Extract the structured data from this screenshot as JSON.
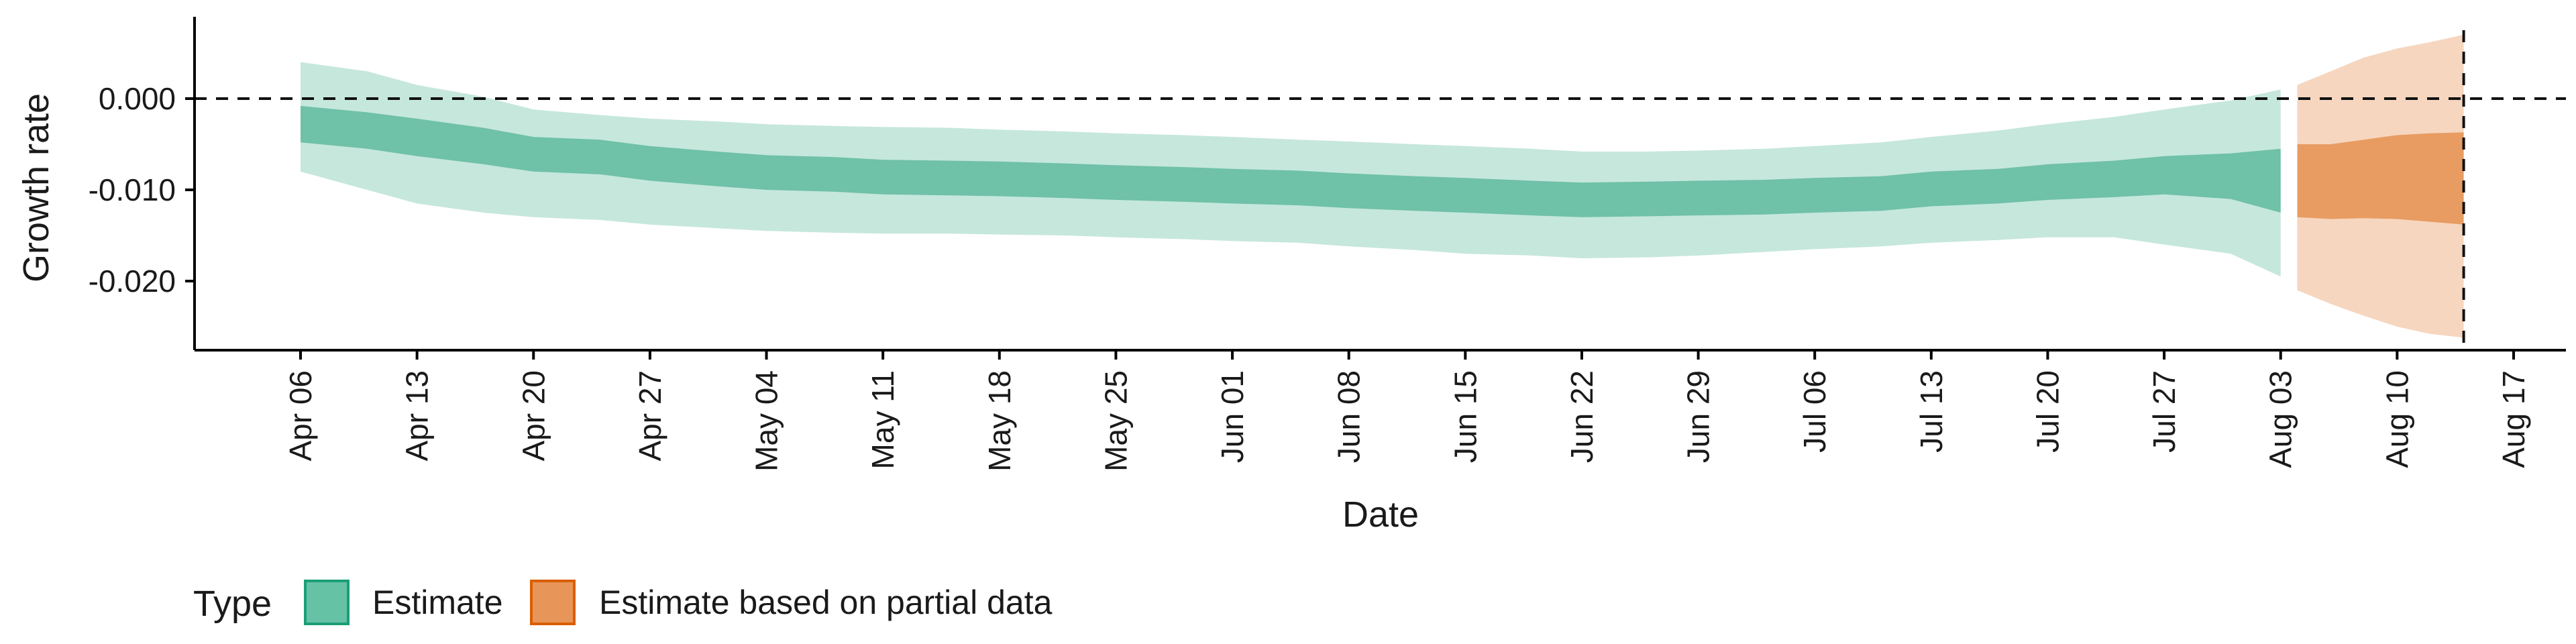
{
  "chart_data": {
    "type": "area",
    "xlabel": "Date",
    "ylabel": "Growth rate",
    "x_ticks": [
      "2020-04-06",
      "2020-04-13",
      "2020-04-20",
      "2020-04-27",
      "2020-05-04",
      "2020-05-11",
      "2020-05-18",
      "2020-05-25",
      "2020-06-01",
      "2020-06-08",
      "2020-06-15",
      "2020-06-22",
      "2020-06-29",
      "2020-07-06",
      "2020-07-13",
      "2020-07-20",
      "2020-07-27",
      "2020-08-03",
      "2020-08-10",
      "2020-08-17"
    ],
    "x_tick_labels": [
      "Apr 06",
      "Apr 13",
      "Apr 20",
      "Apr 27",
      "May 04",
      "May 11",
      "May 18",
      "May 25",
      "Jun 01",
      "Jun 08",
      "Jun 15",
      "Jun 22",
      "Jun 29",
      "Jul 06",
      "Jul 13",
      "Jul 20",
      "Jul 27",
      "Aug 03",
      "Aug 10",
      "Aug 17"
    ],
    "xlim": [
      "2019-12-30",
      "2020-08-21"
    ],
    "y_ticks": [
      0.0,
      -0.01,
      -0.02
    ],
    "y_tick_labels": [
      "0.000",
      "-0.010",
      "-0.020"
    ],
    "ylim": [
      -0.0275,
      0.0085
    ],
    "reference_lines": {
      "hline_y": 0.0,
      "vline_x": "2020-08-14"
    },
    "legend": {
      "title": "Type",
      "placement": "bottom-left",
      "entries": [
        {
          "label": "Estimate",
          "color": "#66c2a5",
          "border": "#1b9e77"
        },
        {
          "label": "Estimate based on partial data",
          "color": "#e8955a",
          "border": "#d95f02"
        }
      ]
    },
    "series": [
      {
        "name": "Estimate",
        "color_inner": "#6fc1a8",
        "color_outer": "#c6e7dc",
        "x": [
          "2020-04-06",
          "2020-04-10",
          "2020-04-13",
          "2020-04-17",
          "2020-04-20",
          "2020-04-24",
          "2020-04-27",
          "2020-05-01",
          "2020-05-04",
          "2020-05-08",
          "2020-05-11",
          "2020-05-15",
          "2020-05-18",
          "2020-05-22",
          "2020-05-25",
          "2020-05-29",
          "2020-06-01",
          "2020-06-05",
          "2020-06-08",
          "2020-06-12",
          "2020-06-15",
          "2020-06-19",
          "2020-06-22",
          "2020-06-26",
          "2020-06-29",
          "2020-07-03",
          "2020-07-06",
          "2020-07-10",
          "2020-07-13",
          "2020-07-17",
          "2020-07-20",
          "2020-07-24",
          "2020-07-27",
          "2020-07-31",
          "2020-08-03"
        ],
        "inner_upper": [
          -0.0008,
          -0.0015,
          -0.0022,
          -0.0032,
          -0.0042,
          -0.0045,
          -0.0052,
          -0.0058,
          -0.0062,
          -0.0064,
          -0.0067,
          -0.0068,
          -0.0069,
          -0.0071,
          -0.0073,
          -0.0075,
          -0.0077,
          -0.0079,
          -0.0082,
          -0.0085,
          -0.0087,
          -0.009,
          -0.0092,
          -0.0091,
          -0.009,
          -0.0089,
          -0.0087,
          -0.0085,
          -0.008,
          -0.0077,
          -0.0072,
          -0.0068,
          -0.0063,
          -0.006,
          -0.0055
        ],
        "inner_lower": [
          -0.0048,
          -0.0055,
          -0.0063,
          -0.0072,
          -0.008,
          -0.0083,
          -0.009,
          -0.0096,
          -0.01,
          -0.0102,
          -0.0105,
          -0.0106,
          -0.0107,
          -0.0109,
          -0.0111,
          -0.0113,
          -0.0115,
          -0.0117,
          -0.012,
          -0.0123,
          -0.0125,
          -0.0128,
          -0.013,
          -0.0129,
          -0.0128,
          -0.0127,
          -0.0125,
          -0.0123,
          -0.0118,
          -0.0115,
          -0.0111,
          -0.0108,
          -0.0105,
          -0.011,
          -0.0125
        ],
        "outer_upper": [
          0.004,
          0.003,
          0.0015,
          0.0002,
          -0.0012,
          -0.0018,
          -0.0022,
          -0.0025,
          -0.0028,
          -0.003,
          -0.0031,
          -0.0032,
          -0.0034,
          -0.0036,
          -0.0038,
          -0.004,
          -0.0042,
          -0.0045,
          -0.0047,
          -0.005,
          -0.0052,
          -0.0055,
          -0.0058,
          -0.0058,
          -0.0057,
          -0.0055,
          -0.0052,
          -0.0048,
          -0.0042,
          -0.0035,
          -0.0028,
          -0.002,
          -0.0012,
          -0.0002,
          0.001
        ],
        "outer_lower": [
          -0.008,
          -0.01,
          -0.0115,
          -0.0125,
          -0.013,
          -0.0133,
          -0.0138,
          -0.0142,
          -0.0145,
          -0.0147,
          -0.0148,
          -0.0148,
          -0.0149,
          -0.015,
          -0.0152,
          -0.0154,
          -0.0156,
          -0.0158,
          -0.0162,
          -0.0166,
          -0.017,
          -0.0172,
          -0.0175,
          -0.0174,
          -0.0172,
          -0.0168,
          -0.0165,
          -0.0162,
          -0.0158,
          -0.0155,
          -0.0152,
          -0.0152,
          -0.016,
          -0.017,
          -0.0195
        ]
      },
      {
        "name": "Estimate based on partial data",
        "color_inner": "#e89c62",
        "color_outer": "#f6d6bf",
        "x": [
          "2020-08-04",
          "2020-08-06",
          "2020-08-08",
          "2020-08-10",
          "2020-08-12",
          "2020-08-14"
        ],
        "inner_upper": [
          -0.005,
          -0.005,
          -0.0045,
          -0.004,
          -0.0038,
          -0.0037
        ],
        "inner_lower": [
          -0.013,
          -0.0132,
          -0.0131,
          -0.0132,
          -0.0135,
          -0.0138
        ],
        "outer_upper": [
          0.0015,
          0.003,
          0.0045,
          0.0055,
          0.0062,
          0.007
        ],
        "outer_lower": [
          -0.021,
          -0.0225,
          -0.0238,
          -0.025,
          -0.0258,
          -0.0262
        ]
      }
    ]
  }
}
